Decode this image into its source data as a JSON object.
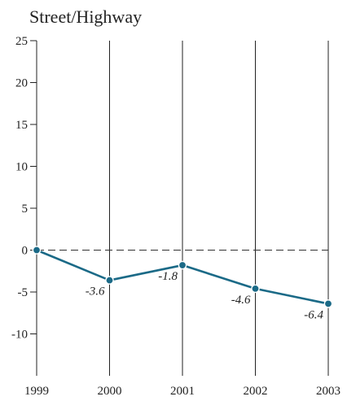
{
  "chart_data": {
    "type": "line",
    "title": "Street/Highway",
    "xlabel": "",
    "ylabel": "",
    "x": [
      "1999",
      "2000",
      "2001",
      "2002",
      "2003"
    ],
    "series": [
      {
        "values": [
          0,
          -3.6,
          -1.8,
          -4.6,
          -6.4
        ]
      }
    ],
    "data_labels": [
      "",
      "-3.6",
      "-1.8",
      "-4.6",
      "-6.4"
    ],
    "y_ticks": [
      25,
      20,
      15,
      10,
      5,
      0,
      -5,
      -10
    ],
    "ylim": [
      -15,
      25
    ],
    "vertical_grid": true,
    "zero_line": "dashed",
    "colors": {
      "line": "#1b6a87",
      "marker": "#1b6a87",
      "axis": "#222222"
    }
  }
}
